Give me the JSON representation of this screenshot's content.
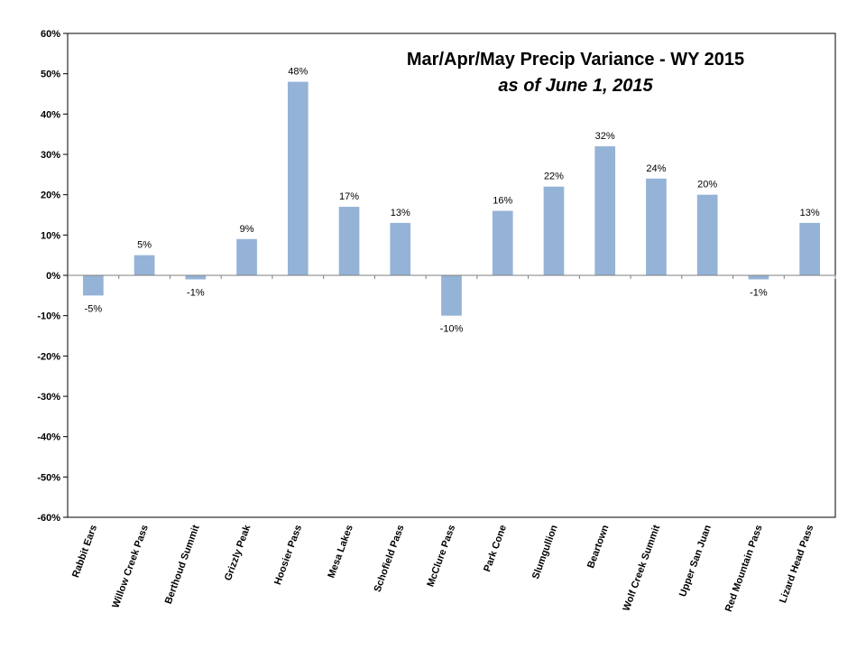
{
  "chart_data": {
    "type": "bar",
    "title": "Mar/Apr/May Precip Variance - WY 2015",
    "subtitle": "as of June 1, 2015",
    "xlabel": "",
    "ylabel": "",
    "ylim": [
      -60,
      60
    ],
    "ytick_step": 10,
    "y_unit": "%",
    "grid": false,
    "legend": "none",
    "categories": [
      "Rabbit Ears",
      "Willow Creek Pass",
      "Berthoud Summit",
      "Grizzly Peak",
      "Hoosier Pass",
      "Mesa Lakes",
      "Schofield Pass",
      "McClure Pass",
      "Park Cone",
      "Slumgullion",
      "Beartown",
      "Wolf Creek Summit",
      "Upper San Juan",
      "Red Mountain Pass",
      "Lizard Head Pass"
    ],
    "values": [
      -5,
      5,
      -1,
      9,
      48,
      17,
      13,
      -10,
      16,
      22,
      32,
      24,
      20,
      -1,
      13
    ],
    "data_labels": [
      "-5%",
      "5%",
      "-1%",
      "9%",
      "48%",
      "17%",
      "13%",
      "-10%",
      "16%",
      "22%",
      "32%",
      "24%",
      "20%",
      "-1%",
      "13%"
    ],
    "bar_color": "#95b3d7"
  }
}
